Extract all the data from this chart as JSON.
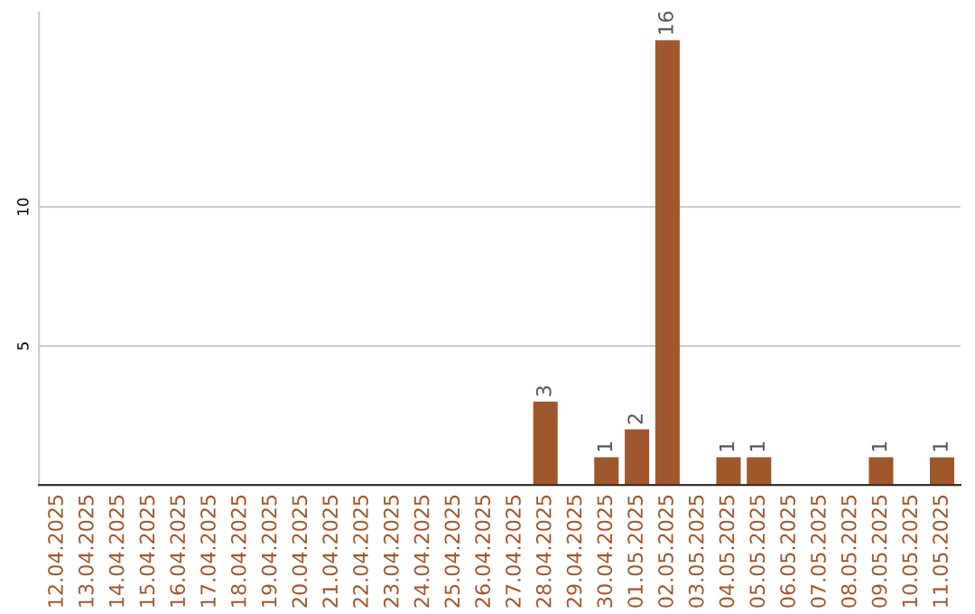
{
  "chart_data": {
    "type": "bar",
    "categories": [
      "12.04.2025",
      "13.04.2025",
      "14.04.2025",
      "15.04.2025",
      "16.04.2025",
      "17.04.2025",
      "18.04.2025",
      "19.04.2025",
      "20.04.2025",
      "21.04.2025",
      "22.04.2025",
      "23.04.2025",
      "24.04.2025",
      "25.04.2025",
      "26.04.2025",
      "27.04.2025",
      "28.04.2025",
      "29.04.2025",
      "30.04.2025",
      "01.05.2025",
      "02.05.2025",
      "03.05.2025",
      "04.05.2025",
      "05.05.2025",
      "06.05.2025",
      "07.05.2025",
      "08.05.2025",
      "09.05.2025",
      "10.05.2025",
      "11.05.2025"
    ],
    "values": [
      0,
      0,
      0,
      0,
      0,
      0,
      0,
      0,
      0,
      0,
      0,
      0,
      0,
      0,
      0,
      0,
      3,
      0,
      1,
      2,
      16,
      0,
      1,
      1,
      0,
      0,
      0,
      1,
      0,
      1
    ],
    "value_labels": [
      null,
      null,
      null,
      null,
      null,
      null,
      null,
      null,
      null,
      null,
      null,
      null,
      null,
      null,
      null,
      null,
      "3",
      null,
      "1",
      "2",
      "16",
      null,
      "1",
      "1",
      null,
      null,
      null,
      "1",
      null,
      "1"
    ],
    "color": "#a0572b",
    "ylim": [
      0,
      17
    ],
    "yticks": [
      5,
      10
    ],
    "grid": "y"
  }
}
